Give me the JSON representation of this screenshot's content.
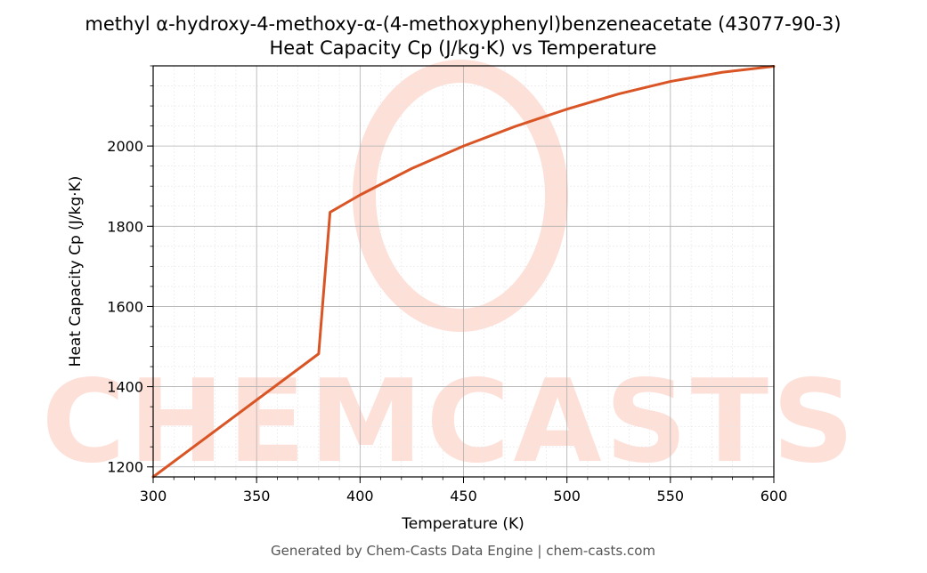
{
  "chart_data": {
    "type": "line",
    "title": "methyl α-hydroxy-4-methoxy-α-(4-methoxyphenyl)benzeneacetate (43077-90-3)",
    "subtitle": "Heat Capacity Cp (J/kg·K) vs Temperature",
    "xlabel": "Temperature (K)",
    "ylabel": "Heat Capacity Cp (J/kg·K)",
    "xlim": [
      300,
      600
    ],
    "ylim": [
      1175,
      2200
    ],
    "xticks": [
      300,
      350,
      400,
      450,
      500,
      550,
      600
    ],
    "yticks": [
      1200,
      1400,
      1600,
      1800,
      2000
    ],
    "grid": true,
    "series": [
      {
        "color": "#d95525",
        "x": [
          300,
          380,
          385.5,
          400,
          425,
          450,
          475,
          500,
          525,
          550,
          575,
          600
        ],
        "y": [
          1175,
          1482,
          1835,
          1878,
          1944,
          2000,
          2049,
          2092,
          2130,
          2161,
          2184,
          2199
        ]
      }
    ]
  },
  "watermark": {
    "text": "CHEMCASTS",
    "color": "#fde0d8"
  },
  "footer": "Generated by Chem-Casts Data Engine | chem-casts.com"
}
